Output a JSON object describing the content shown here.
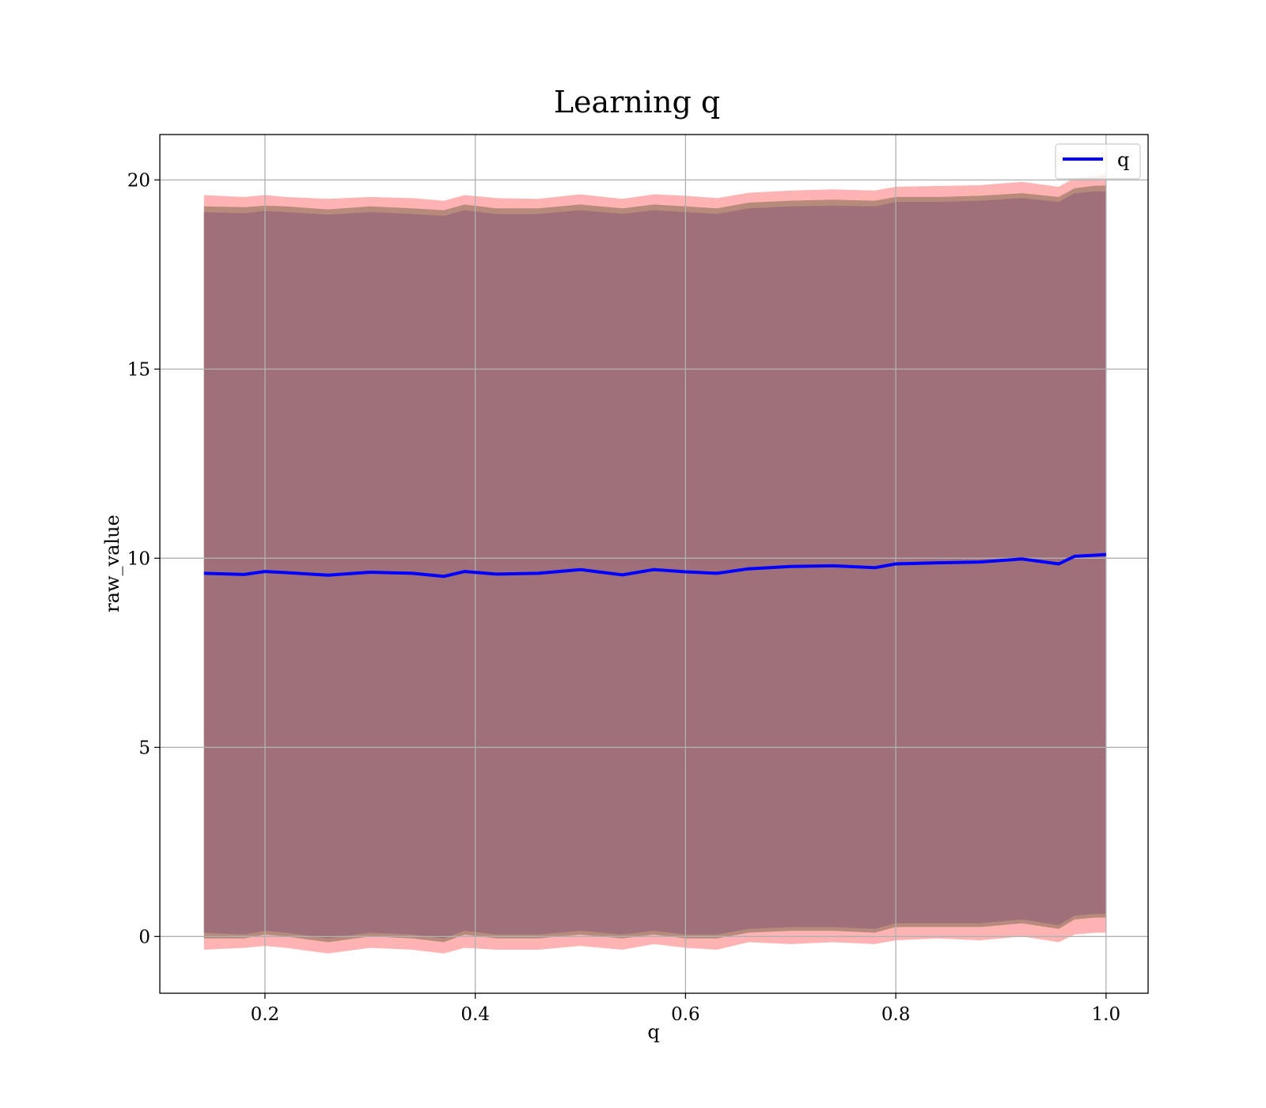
{
  "chart_data": {
    "type": "line",
    "title": "Learning q",
    "xlabel": "q",
    "ylabel": "raw_value",
    "xlim": [
      0.1,
      1.04
    ],
    "ylim": [
      -1.5,
      21.2
    ],
    "xticks": [
      0.2,
      0.4,
      0.6,
      0.8,
      1.0
    ],
    "xtick_labels": [
      "0.2",
      "0.4",
      "0.6",
      "0.8",
      "1.0"
    ],
    "yticks": [
      0,
      5,
      10,
      15,
      20
    ],
    "ytick_labels": [
      "0",
      "5",
      "10",
      "15",
      "20"
    ],
    "grid": true,
    "legend": {
      "position": "top-right",
      "entries": [
        "q"
      ]
    },
    "colors": {
      "line": "#0000ff",
      "outer_band": "#ffb3b3",
      "middle_band": "#b88a7c",
      "inner_band": "#a0707a",
      "grid": "#b0b0b0"
    },
    "x": [
      0.142,
      0.18,
      0.2,
      0.22,
      0.26,
      0.3,
      0.34,
      0.37,
      0.39,
      0.42,
      0.46,
      0.5,
      0.54,
      0.57,
      0.6,
      0.63,
      0.66,
      0.7,
      0.74,
      0.78,
      0.8,
      0.84,
      0.88,
      0.92,
      0.955,
      0.97,
      0.99,
      1.0
    ],
    "series": [
      {
        "name": "q",
        "values": [
          9.6,
          9.57,
          9.65,
          9.62,
          9.55,
          9.63,
          9.6,
          9.52,
          9.65,
          9.58,
          9.6,
          9.7,
          9.56,
          9.7,
          9.64,
          9.6,
          9.72,
          9.78,
          9.8,
          9.75,
          9.85,
          9.88,
          9.9,
          9.98,
          9.85,
          10.05,
          10.08,
          10.1
        ]
      }
    ],
    "bands": [
      {
        "lower": [
          -0.35,
          -0.3,
          -0.25,
          -0.3,
          -0.45,
          -0.3,
          -0.35,
          -0.45,
          -0.3,
          -0.35,
          -0.35,
          -0.25,
          -0.35,
          -0.2,
          -0.3,
          -0.35,
          -0.15,
          -0.2,
          -0.15,
          -0.2,
          -0.1,
          -0.05,
          -0.1,
          0.0,
          -0.15,
          0.05,
          0.1,
          0.1
        ],
        "upper": [
          19.6,
          19.55,
          19.6,
          19.55,
          19.5,
          19.55,
          19.52,
          19.45,
          19.6,
          19.52,
          19.5,
          19.62,
          19.5,
          19.62,
          19.58,
          19.52,
          19.66,
          19.72,
          19.75,
          19.72,
          19.82,
          19.84,
          19.86,
          19.95,
          19.82,
          20.05,
          20.1,
          20.15
        ]
      },
      {
        "lower": [
          -0.05,
          -0.05,
          0.05,
          0.0,
          -0.15,
          0.0,
          -0.05,
          -0.15,
          0.05,
          -0.05,
          -0.05,
          0.05,
          -0.05,
          0.05,
          -0.05,
          -0.05,
          0.1,
          0.15,
          0.15,
          0.1,
          0.25,
          0.25,
          0.25,
          0.35,
          0.2,
          0.45,
          0.5,
          0.5
        ],
        "upper": [
          19.3,
          19.28,
          19.32,
          19.3,
          19.22,
          19.3,
          19.25,
          19.2,
          19.35,
          19.25,
          19.25,
          19.35,
          19.25,
          19.35,
          19.3,
          19.25,
          19.4,
          19.45,
          19.48,
          19.45,
          19.55,
          19.55,
          19.58,
          19.65,
          19.55,
          19.78,
          19.85,
          19.85
        ]
      },
      {
        "lower": [
          0.1,
          0.05,
          0.15,
          0.1,
          -0.05,
          0.1,
          0.05,
          -0.05,
          0.15,
          0.05,
          0.05,
          0.15,
          0.05,
          0.15,
          0.05,
          0.05,
          0.2,
          0.25,
          0.25,
          0.2,
          0.35,
          0.35,
          0.35,
          0.45,
          0.3,
          0.55,
          0.6,
          0.6
        ],
        "upper": [
          19.15,
          19.12,
          19.18,
          19.15,
          19.08,
          19.15,
          19.1,
          19.05,
          19.2,
          19.1,
          19.1,
          19.2,
          19.1,
          19.2,
          19.15,
          19.1,
          19.25,
          19.3,
          19.32,
          19.3,
          19.42,
          19.42,
          19.45,
          19.52,
          19.42,
          19.65,
          19.7,
          19.7
        ]
      }
    ]
  }
}
